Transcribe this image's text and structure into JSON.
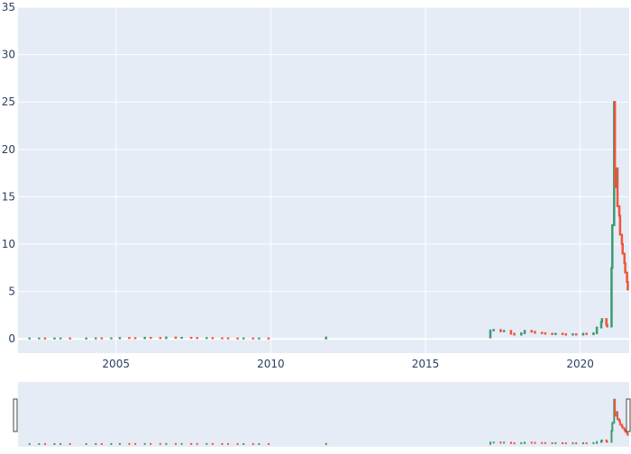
{
  "chart_data": {
    "type": "candlestick",
    "title": "",
    "xlabel": "",
    "ylabel": "",
    "xlim": [
      "2001-11-01",
      "2021-08-01"
    ],
    "ylim": [
      -1.5,
      35
    ],
    "x_ticks": [
      "2005",
      "2010",
      "2015",
      "2020"
    ],
    "y_ticks": [
      0,
      5,
      10,
      15,
      20,
      25,
      30,
      35
    ],
    "grid": true,
    "rangeslider": true,
    "colors": {
      "increasing": "#3d9970",
      "decreasing": "#ef553b",
      "plot_bg": "#e5ecf6",
      "grid": "#ffffff",
      "axis_text": "#2a3f5f"
    },
    "series": [
      {
        "x": [
          "2002-03",
          "2002-06",
          "2002-09",
          "2002-12",
          "2003-03",
          "2003-06",
          "2004-01",
          "2004-04",
          "2004-07",
          "2004-10",
          "2005-02",
          "2005-05",
          "2005-08",
          "2005-11",
          "2006-02",
          "2006-05",
          "2006-08",
          "2006-11",
          "2007-02",
          "2007-05",
          "2007-08",
          "2007-11",
          "2008-02",
          "2008-05",
          "2008-08",
          "2008-11",
          "2009-02",
          "2009-05",
          "2009-08",
          "2009-11",
          "2011-10",
          "2017-01",
          "2017-03",
          "2017-05",
          "2017-07",
          "2017-09",
          "2017-11",
          "2018-01",
          "2018-03",
          "2018-05",
          "2018-07",
          "2018-09",
          "2018-11",
          "2019-01",
          "2019-03",
          "2019-05",
          "2019-07",
          "2019-09",
          "2019-11",
          "2020-01",
          "2020-03",
          "2020-05",
          "2020-07",
          "2020-08",
          "2020-09",
          "2020-10",
          "2020-11",
          "2020-12",
          "2021-01",
          "2021-01",
          "2021-02",
          "2021-02",
          "2021-03",
          "2021-03",
          "2021-04",
          "2021-04",
          "2021-05",
          "2021-05",
          "2021-06",
          "2021-06",
          "2021-07"
        ],
        "close": [
          0.05,
          0.05,
          0.04,
          0.05,
          0.05,
          0.04,
          0.05,
          0.06,
          0.05,
          0.06,
          0.1,
          0.08,
          0.07,
          0.12,
          0.1,
          0.08,
          0.15,
          0.1,
          0.12,
          0.1,
          0.08,
          0.09,
          0.07,
          0.06,
          0.05,
          0.04,
          0.05,
          0.04,
          0.05,
          0.04,
          0.15,
          0.9,
          0.95,
          0.8,
          0.85,
          0.55,
          0.45,
          0.6,
          0.85,
          0.75,
          0.65,
          0.6,
          0.55,
          0.5,
          0.55,
          0.5,
          0.45,
          0.5,
          0.45,
          0.55,
          0.5,
          0.6,
          1.2,
          1.8,
          2.1,
          1.5,
          1.3,
          7.5,
          12.0,
          25.0,
          16.0,
          18.0,
          14.0,
          13.0,
          11.0,
          10.0,
          9.0,
          8.0,
          7.0,
          6.0,
          5.2
        ]
      }
    ]
  }
}
